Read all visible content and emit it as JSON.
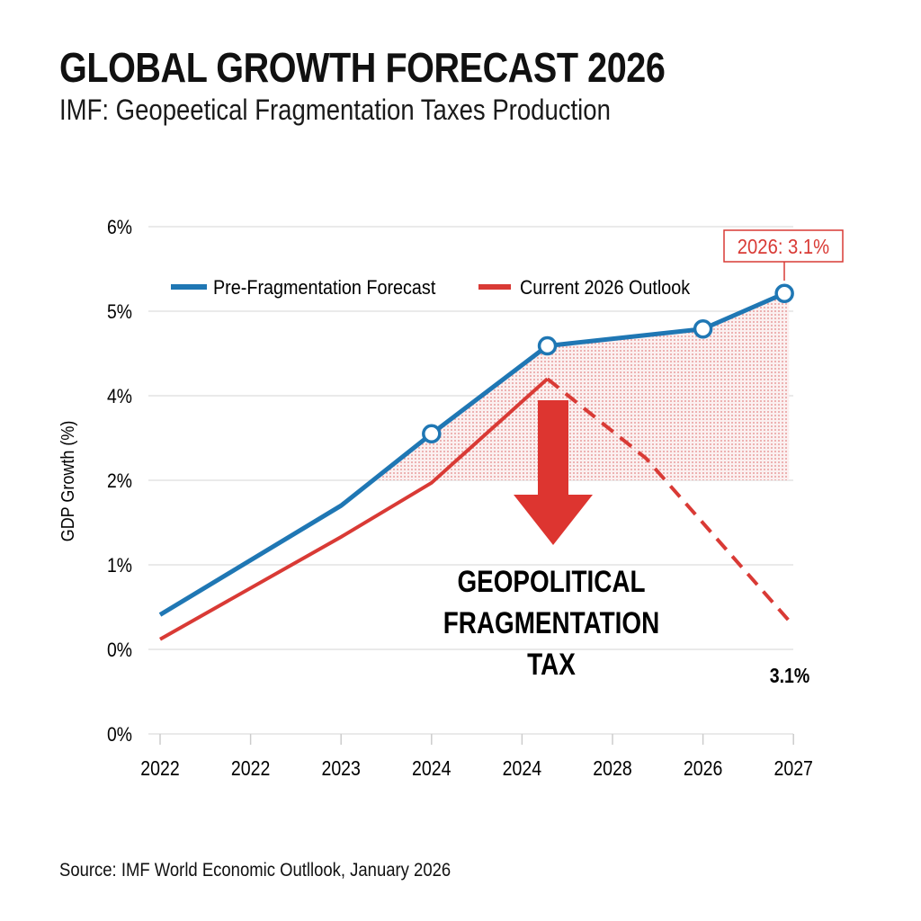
{
  "title": "GLOBAL GROWTH FORECAST 2026",
  "subtitle": "IMF: Geopeetical Fragmentation Taxes Production",
  "source": "Source: IMF World Economic Outllook, January 2026",
  "chart_data": {
    "type": "line",
    "title": "GLOBAL GROWTH FORECAST 2026",
    "ylabel": "GDP Growth (%)",
    "xlabel": "",
    "x_tick_labels": [
      "2022",
      "2022",
      "2023",
      "2024",
      "2024",
      "2028",
      "2026",
      "2027"
    ],
    "y_tick_labels": [
      "0%",
      "0%",
      "1%",
      "2%",
      "4%",
      "5%",
      "6%"
    ],
    "ylim": [
      0,
      6
    ],
    "xlim": [
      0,
      7
    ],
    "grid": true,
    "legend_placement": "top",
    "colors": {
      "pre": "#1f77b4",
      "current": "#d93a35",
      "fill": "#e05a5a",
      "annotation": "#d93a35"
    },
    "series": [
      {
        "name": "Pre-Fragmentation Forecast",
        "style": "solid",
        "markers_at": [
          3,
          4.28,
          6,
          6.9
        ],
        "points": [
          [
            0,
            1.41
          ],
          [
            2,
            2.7
          ],
          [
            3,
            3.55
          ],
          [
            4.28,
            4.59
          ],
          [
            6,
            4.79
          ],
          [
            6.9,
            5.21
          ]
        ]
      },
      {
        "name": "Current 2026 Outlook",
        "style": "solid",
        "points": [
          [
            0,
            1.12
          ],
          [
            2,
            2.33
          ],
          [
            3,
            2.97
          ],
          [
            4.28,
            4.2
          ]
        ]
      },
      {
        "name": "Current 2026 Outlook (projection)",
        "style": "dashed",
        "points": [
          [
            4.28,
            4.2
          ],
          [
            5.37,
            3.26
          ],
          [
            6.95,
            1.34
          ]
        ]
      }
    ],
    "shaded_gap_floor": 3,
    "annotations": {
      "callout_box": "2026: 3.1%",
      "end_label": "3.1%",
      "arrow_text": [
        "GEOPOLITICAL",
        "FRAGMENTATION",
        "TAX"
      ]
    }
  }
}
